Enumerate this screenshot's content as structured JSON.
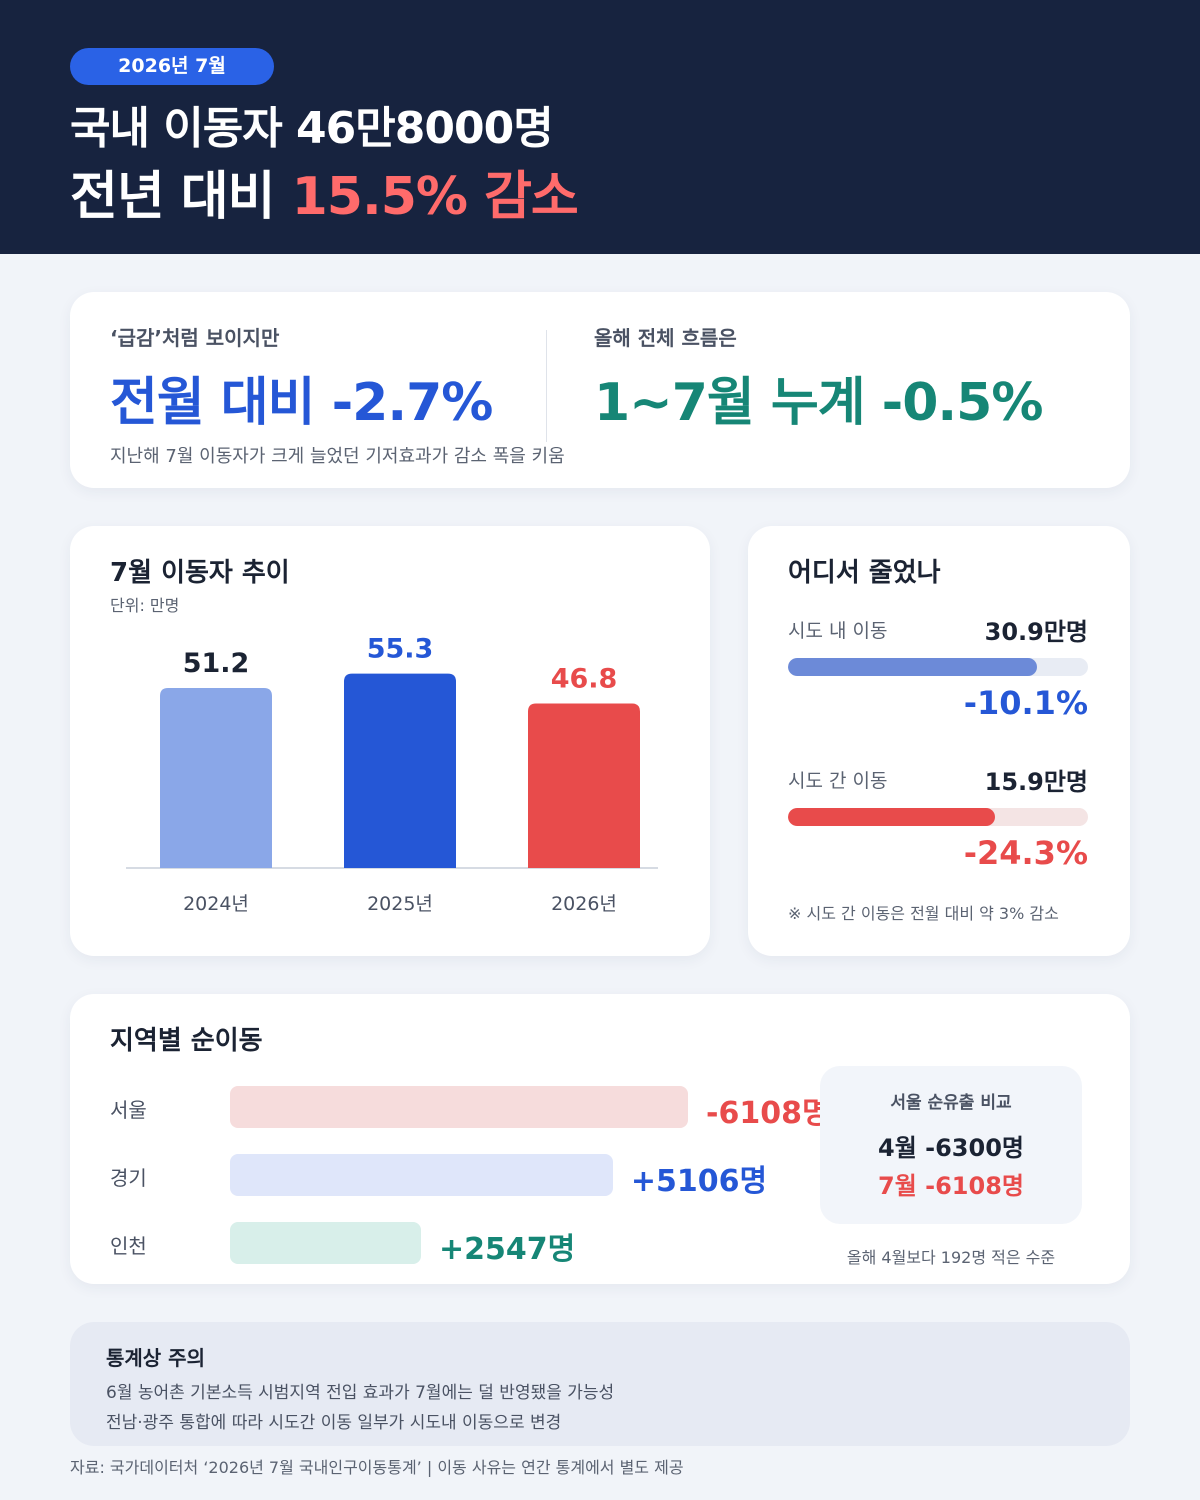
{
  "header": {
    "date": "2026년 7월",
    "headline_line1": "국내 이동자 46만8000명",
    "headline_line2_prefix": "전년 대비 ",
    "headline_line2_highlight": "15.5% 감소"
  },
  "summary": {
    "left_label": "‘급감’처럼 보이지만",
    "left_value": "전월 대비 -2.7%",
    "right_label": "올해 전체 흐름은",
    "right_value": "1~7월 누계 -0.5%",
    "note": "지난해 7월 이동자가 크게 늘었던 기저효과가 감소 폭을 키움"
  },
  "trend": {
    "title": "7월 이동자 추이",
    "unit": "단위: 만명"
  },
  "chart_data": {
    "type": "bar",
    "title": "7월 이동자 추이",
    "ylabel": "단위: 만명",
    "categories": [
      "2024년",
      "2025년",
      "2026년"
    ],
    "values": [
      51.2,
      55.3,
      46.8
    ],
    "value_labels": [
      "51.2",
      "55.3",
      "46.8"
    ],
    "bar_colors": [
      "#8aa7e8",
      "#2557d6",
      "#e84b4b"
    ],
    "label_colors": [
      "#1b2333",
      "#2557d6",
      "#e84b4b"
    ],
    "ylim": [
      0,
      60
    ]
  },
  "where": {
    "title": "어디서 줄었나",
    "rows": [
      {
        "label": "시도 내 이동",
        "value": "30.9만명",
        "pct": "-10.1%",
        "fill_ratio": 0.83,
        "color": "#6c8ad8",
        "track": "#e8ecf4",
        "pct_color": "#2557d6"
      },
      {
        "label": "시도 간 이동",
        "value": "15.9만명",
        "pct": "-24.3%",
        "fill_ratio": 0.69,
        "color": "#e84b4b",
        "track": "#f4e4e4",
        "pct_color": "#e84b4b"
      }
    ],
    "note": "※ 시도 간 이동은 전월 대비 약 3% 감소"
  },
  "regions": {
    "title": "지역별 순이동",
    "rows": [
      {
        "name": "서울",
        "value": "-6108명",
        "magnitude": 6108,
        "bar_color": "#f6dcdc",
        "value_color": "#e84b4b"
      },
      {
        "name": "경기",
        "value": "+5106명",
        "magnitude": 5106,
        "bar_color": "#dfe6fa",
        "value_color": "#2557d6"
      },
      {
        "name": "인천",
        "value": "+2547명",
        "magnitude": 2547,
        "bar_color": "#d8efea",
        "value_color": "#168676"
      }
    ],
    "compare": {
      "title": "서울 순유출 비교",
      "line1": "4월 -6300명",
      "line2": "7월 -6108명",
      "line1_color": "#1b2333",
      "line2_color": "#e84b4b"
    },
    "compare_note": "올해 4월보다 192명 적은 수준"
  },
  "caution": {
    "title": "통계상 주의",
    "lines": [
      "6월 농어촌 기본소득 시범지역 전입 효과가 7월에는 덜 반영됐을 가능성",
      "전남·광주 통합에 따라 시도간 이동 일부가 시도내 이동으로 변경"
    ]
  },
  "source": "자료: 국가데이터처 ‘2026년 7월 국내인구이동통계’ | 이동 사유는 연간 통계에서 별도 제공",
  "colors": {
    "navy": "#17233f",
    "blue": "#2557d6",
    "teal": "#168676",
    "red": "#e84b4b"
  }
}
